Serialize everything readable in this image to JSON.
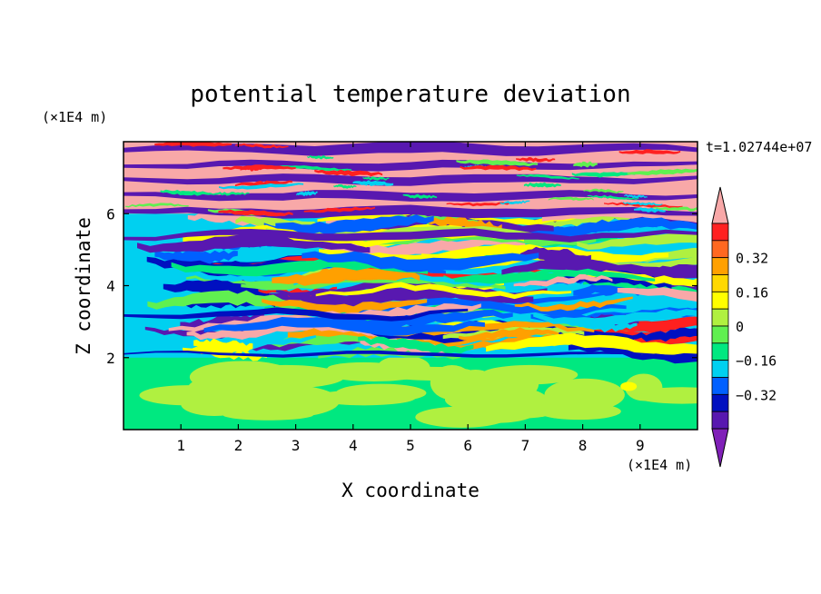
{
  "chart_data": {
    "type": "heatmap",
    "title": "potential temperature deviation",
    "time_label": "t=1.02744e+07",
    "xlabel": "X coordinate",
    "ylabel": "Z coordinate",
    "x_unit": "(×1E4 m)",
    "z_unit": "(×1E4 m)",
    "xlim": [
      0,
      10
    ],
    "ylim": [
      0,
      8
    ],
    "x_ticks": [
      1,
      2,
      3,
      4,
      5,
      6,
      7,
      8,
      9
    ],
    "y_ticks": [
      2,
      4,
      6
    ],
    "colorbar": {
      "levels": [
        -0.48,
        -0.4,
        -0.32,
        -0.24,
        -0.16,
        -0.08,
        0,
        0.08,
        0.16,
        0.24,
        0.32,
        0.4,
        0.48
      ],
      "labeled_levels": [
        0.32,
        0.16,
        0,
        -0.16,
        -0.32
      ],
      "labels": [
        "0.32",
        "0.16",
        "0",
        "−0.16",
        "−0.32"
      ],
      "colors_high_to_low": [
        "#f8a8a8",
        "#ff2020",
        "#ff6820",
        "#ffa000",
        "#ffd800",
        "#ffff00",
        "#b0f040",
        "#60f050",
        "#00e880",
        "#00d0f0",
        "#0060ff",
        "#0010c0",
        "#5818b0",
        "#8020b8"
      ]
    },
    "layers": [
      {
        "z_range": [
          0,
          2
        ],
        "description_value": "near zero"
      },
      {
        "z_range": [
          2,
          6
        ],
        "description_value": "mixed positive and negative"
      },
      {
        "z_range": [
          6,
          8
        ],
        "description_value": "alternating bands"
      }
    ]
  }
}
